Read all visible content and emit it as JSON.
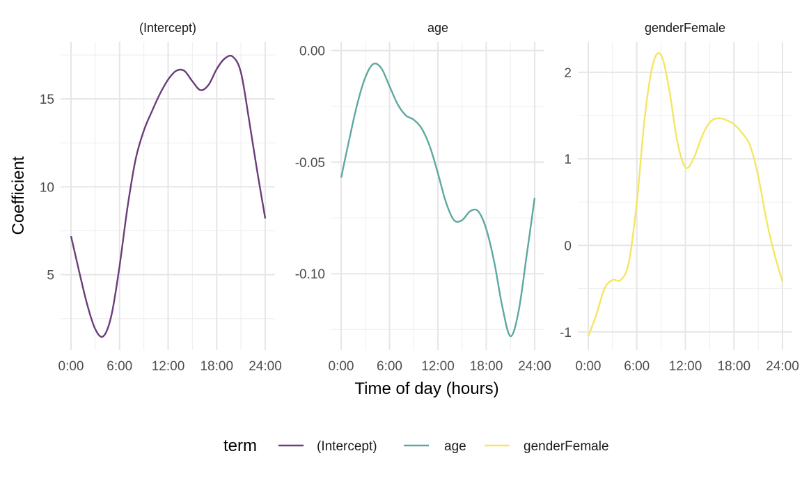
{
  "chart_data": {
    "type": "line",
    "xlabel": "Time of day (hours)",
    "ylabel": "Coefficient",
    "x_ticks": [
      "0:00",
      "6:00",
      "12:00",
      "18:00",
      "24:00"
    ],
    "x_tick_values": [
      0,
      6,
      12,
      18,
      24
    ],
    "xlim": [
      0,
      24
    ],
    "grid": true,
    "legend": {
      "title": "term",
      "position": "bottom",
      "entries": [
        {
          "label": "(Intercept)",
          "color": "#6a3d7a"
        },
        {
          "label": "age",
          "color": "#5ea8a0"
        },
        {
          "label": "genderFemale",
          "color": "#f5e660"
        }
      ]
    },
    "panels": [
      {
        "strip": "(Intercept)",
        "color": "#6a3d7a",
        "ylim": [
          1.5,
          17.5
        ],
        "y_ticks": [
          5,
          10,
          15
        ],
        "y_tick_labels": [
          "5",
          "10",
          "15"
        ],
        "x": [
          0,
          1,
          2,
          3,
          4,
          5,
          6,
          7,
          8,
          9,
          10,
          11,
          12,
          13,
          14,
          15,
          16,
          17,
          18,
          19,
          20,
          21,
          22,
          23,
          24
        ],
        "y": [
          7.2,
          5.2,
          3.3,
          1.9,
          1.5,
          2.7,
          5.5,
          8.9,
          11.6,
          13.2,
          14.3,
          15.3,
          16.1,
          16.6,
          16.6,
          16.0,
          15.5,
          15.8,
          16.7,
          17.3,
          17.4,
          16.5,
          13.8,
          10.9,
          8.2
        ]
      },
      {
        "strip": "age",
        "color": "#5ea8a0",
        "ylim": [
          -0.128,
          -0.002
        ],
        "y_ticks": [
          0,
          -0.05,
          -0.1
        ],
        "y_tick_labels": [
          "0.00",
          "-0.05",
          "-0.10"
        ],
        "x": [
          0,
          1,
          2,
          3,
          4,
          5,
          6,
          7,
          8,
          9,
          10,
          11,
          12,
          13,
          14,
          15,
          16,
          17,
          18,
          19,
          20,
          21,
          22,
          23,
          24
        ],
        "y": [
          -0.057,
          -0.04,
          -0.024,
          -0.012,
          -0.006,
          -0.008,
          -0.016,
          -0.024,
          -0.029,
          -0.031,
          -0.035,
          -0.043,
          -0.055,
          -0.068,
          -0.076,
          -0.076,
          -0.072,
          -0.072,
          -0.08,
          -0.095,
          -0.115,
          -0.128,
          -0.117,
          -0.092,
          -0.066
        ]
      },
      {
        "strip": "genderFemale",
        "color": "#f5e660",
        "ylim": [
          -1.05,
          2.2
        ],
        "y_ticks": [
          -1,
          0,
          1,
          2
        ],
        "y_tick_labels": [
          "-1",
          "0",
          "1",
          "2"
        ],
        "x": [
          0,
          1,
          2,
          3,
          4,
          5,
          6,
          7,
          8,
          9,
          10,
          11,
          12,
          13,
          14,
          15,
          16,
          17,
          18,
          19,
          20,
          21,
          22,
          23,
          24
        ],
        "y": [
          -1.05,
          -0.8,
          -0.5,
          -0.4,
          -0.4,
          -0.2,
          0.5,
          1.5,
          2.1,
          2.2,
          1.8,
          1.2,
          0.9,
          1.0,
          1.25,
          1.42,
          1.47,
          1.45,
          1.4,
          1.3,
          1.15,
          0.8,
          0.3,
          -0.1,
          -0.42
        ]
      }
    ]
  }
}
